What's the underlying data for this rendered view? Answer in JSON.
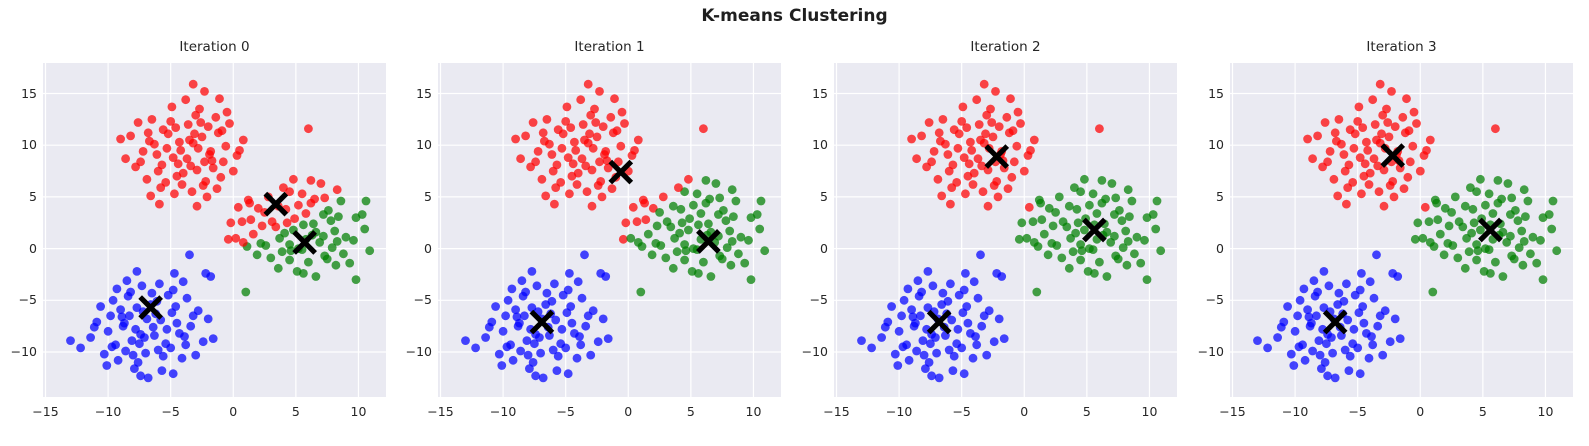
{
  "figure": {
    "title": "K-means Clustering",
    "background": "#ffffff"
  },
  "chart_data": {
    "type": "scatter",
    "title": "K-means Clustering",
    "grid": true,
    "axes_background": "#eaeaf2",
    "gridline_color": "#ffffff",
    "xlim": [
      -15.2,
      12.2
    ],
    "ylim": [
      -14.35,
      17.95
    ],
    "xticks": [
      -15,
      -10,
      -5,
      0,
      5,
      10
    ],
    "yticks": [
      -10,
      -5,
      0,
      5,
      10,
      15
    ],
    "colors": [
      "red",
      "green",
      "blue"
    ],
    "point_fill": {
      "red": "rgba(255,0,0,0.72)",
      "green": "rgba(0,128,0,0.72)",
      "blue": "rgba(0,0,255,0.72)"
    },
    "centroid_marker": {
      "shape": "X",
      "color": "#000000"
    },
    "assignment_rule": "nearest-centroid",
    "subplots": [
      {
        "title": "Iteration 0",
        "centroids": [
          [
            3.4,
            4.3
          ],
          [
            5.7,
            0.6
          ],
          [
            -6.6,
            -5.7
          ]
        ]
      },
      {
        "title": "Iteration 1",
        "centroids": [
          [
            -0.6,
            7.4
          ],
          [
            6.4,
            0.7
          ],
          [
            -6.9,
            -7.1
          ]
        ]
      },
      {
        "title": "Iteration 2",
        "centroids": [
          [
            -2.2,
            8.9
          ],
          [
            5.6,
            1.8
          ],
          [
            -6.8,
            -7.1
          ]
        ]
      },
      {
        "title": "Iteration 3",
        "centroids": [
          [
            -2.2,
            9.0
          ],
          [
            5.6,
            1.8
          ],
          [
            -6.8,
            -7.1
          ]
        ]
      }
    ],
    "points": [
      [
        -3.5,
        10.5
      ],
      [
        -5.3,
        9.7
      ],
      [
        -1.7,
        8.5
      ],
      [
        -4.5,
        7.0
      ],
      [
        -2.0,
        11.8
      ],
      [
        -6.7,
        10.4
      ],
      [
        -2.9,
        7.6
      ],
      [
        -0.6,
        9.9
      ],
      [
        -5.0,
        12.3
      ],
      [
        -7.4,
        8.4
      ],
      [
        -2.4,
        6.1
      ],
      [
        -1.2,
        11.2
      ],
      [
        -4.2,
        9.5
      ],
      [
        -3.7,
        8.7
      ],
      [
        -6.0,
        7.5
      ],
      [
        0.3,
        9.0
      ],
      [
        -8.2,
        10.9
      ],
      [
        -2.7,
        13.5
      ],
      [
        -4.7,
        5.3
      ],
      [
        -1.0,
        6.9
      ],
      [
        -5.6,
        11.5
      ],
      [
        -3.2,
        10.2
      ],
      [
        -6.9,
        6.7
      ],
      [
        -0.3,
        12.1
      ],
      [
        -1.9,
        9.1
      ],
      [
        -6.3,
        10.1
      ],
      [
        -3.6,
        12.0
      ],
      [
        -4.4,
        8.2
      ],
      [
        -2.5,
        10.8
      ],
      [
        -4.8,
        8.8
      ],
      [
        -1.6,
        7.8
      ],
      [
        -5.8,
        5.9
      ],
      [
        -3.0,
        12.9
      ],
      [
        0.8,
        10.5
      ],
      [
        -7.8,
        7.9
      ],
      [
        -2.2,
        6.5
      ],
      [
        -5.2,
        11.1
      ],
      [
        -0.8,
        8.4
      ],
      [
        -4.0,
        7.3
      ],
      [
        -3.3,
        5.5
      ],
      [
        -6.5,
        12.5
      ],
      [
        -1.4,
        12.7
      ],
      [
        -7.2,
        9.4
      ],
      [
        -2.8,
        9.7
      ],
      [
        -4.6,
        11.7
      ],
      [
        -2.1,
        5.0
      ],
      [
        -5.4,
        6.4
      ],
      [
        -0.9,
        11.4
      ],
      [
        -6.1,
        9.1
      ],
      [
        -3.4,
        8.0
      ],
      [
        0.0,
        7.5
      ],
      [
        -7.6,
        12.2
      ],
      [
        -3.1,
        11.1
      ],
      [
        -4.9,
        13.7
      ],
      [
        -1.8,
        9.4
      ],
      [
        -4.1,
        6.2
      ],
      [
        -2.6,
        12.2
      ],
      [
        -6.6,
        5.1
      ],
      [
        -0.5,
        13.2
      ],
      [
        -8.6,
        8.7
      ],
      [
        -3.8,
        14.4
      ],
      [
        -5.7,
        8.1
      ],
      [
        -1.3,
        5.8
      ],
      [
        -4.3,
        10.3
      ],
      [
        -2.3,
        8.4
      ],
      [
        -6.8,
        11.2
      ],
      [
        0.5,
        9.5
      ],
      [
        -5.9,
        4.3
      ],
      [
        -2.9,
        4.1
      ],
      [
        -9.0,
        10.6
      ],
      [
        -3.2,
        15.9
      ],
      [
        -2.3,
        15.2
      ],
      [
        -1.1,
        14.5
      ],
      [
        6.0,
        11.6
      ],
      [
        0.7,
        2.6
      ],
      [
        -0.4,
        0.9
      ],
      [
        -0.2,
        2.5
      ],
      [
        1.3,
        4.4
      ],
      [
        6.6,
        1.6
      ],
      [
        5.8,
        3.4
      ],
      [
        4.6,
        -0.2
      ],
      [
        3.1,
        2.6
      ],
      [
        7.9,
        0.1
      ],
      [
        6.5,
        4.8
      ],
      [
        3.7,
        1.0
      ],
      [
        6.0,
        -1.3
      ],
      [
        8.4,
        3.1
      ],
      [
        4.5,
        5.5
      ],
      [
        2.2,
        0.5
      ],
      [
        7.3,
        -0.7
      ],
      [
        5.6,
        2.3
      ],
      [
        4.8,
        1.8
      ],
      [
        3.6,
        4.1
      ],
      [
        5.1,
        -2.2
      ],
      [
        7.0,
        6.3
      ],
      [
        9.6,
        0.8
      ],
      [
        1.4,
        2.8
      ],
      [
        3.0,
        -0.9
      ],
      [
        7.6,
        3.7
      ],
      [
        6.3,
        1.3
      ],
      [
        2.8,
        5.0
      ],
      [
        8.2,
        -1.6
      ],
      [
        5.2,
        0.0
      ],
      [
        6.2,
        4.4
      ],
      [
        8.1,
        1.7
      ],
      [
        4.3,
        2.5
      ],
      [
        6.9,
        0.6
      ],
      [
        4.9,
        2.9
      ],
      [
        3.9,
        -0.3
      ],
      [
        2.0,
        3.9
      ],
      [
        9.0,
        1.1
      ],
      [
        6.6,
        -2.7
      ],
      [
        4.0,
        5.9
      ],
      [
        2.6,
        0.3
      ],
      [
        7.2,
        3.3
      ],
      [
        4.5,
        -1.1
      ],
      [
        3.4,
        2.1
      ],
      [
        1.6,
        1.4
      ],
      [
        8.6,
        4.6
      ],
      [
        8.8,
        -0.5
      ],
      [
        5.5,
        5.3
      ],
      [
        5.8,
        0.9
      ],
      [
        7.8,
        2.7
      ],
      [
        1.1,
        0.2
      ],
      [
        2.5,
        3.5
      ],
      [
        7.5,
        -1.0
      ],
      [
        5.2,
        4.2
      ],
      [
        4.1,
        1.5
      ],
      [
        3.6,
        -1.9
      ],
      [
        8.3,
        5.7
      ],
      [
        7.2,
        1.2
      ],
      [
        9.8,
        3.0
      ],
      [
        5.5,
        -0.1
      ],
      [
        2.3,
        2.2
      ],
      [
        8.3,
        0.7
      ],
      [
        1.2,
        4.7
      ],
      [
        9.3,
        -1.4
      ],
      [
        4.8,
        6.7
      ],
      [
        10.5,
        1.9
      ],
      [
        4.2,
        3.8
      ],
      [
        1.9,
        -0.6
      ],
      [
        6.4,
        2.4
      ],
      [
        4.5,
        0.4
      ],
      [
        7.3,
        4.9
      ],
      [
        5.6,
        -2.4
      ],
      [
        0.4,
        4.0
      ],
      [
        0.2,
        1.0
      ],
      [
        6.2,
        6.6
      ],
      [
        1.0,
        -4.2
      ],
      [
        10.6,
        4.6
      ],
      [
        10.3,
        3.3
      ],
      [
        10.9,
        -0.2
      ],
      [
        9.8,
        -3.0
      ],
      [
        0.8,
        0.6
      ],
      [
        -7.1,
        -8.6
      ],
      [
        -5.3,
        -7.8
      ],
      [
        -8.9,
        -6.6
      ],
      [
        -6.1,
        -5.1
      ],
      [
        -8.6,
        -9.9
      ],
      [
        -3.9,
        -8.5
      ],
      [
        -7.7,
        -5.7
      ],
      [
        -10.0,
        -8.0
      ],
      [
        -5.6,
        -10.4
      ],
      [
        -3.2,
        -6.5
      ],
      [
        -8.2,
        -4.2
      ],
      [
        -9.4,
        -9.3
      ],
      [
        -6.4,
        -7.6
      ],
      [
        -6.9,
        -6.8
      ],
      [
        -4.6,
        -5.6
      ],
      [
        -10.9,
        -7.1
      ],
      [
        -2.4,
        -9.0
      ],
      [
        -7.9,
        -11.6
      ],
      [
        -5.9,
        -3.4
      ],
      [
        -9.6,
        -5.0
      ],
      [
        -5.0,
        -9.6
      ],
      [
        -7.4,
        -8.3
      ],
      [
        -3.7,
        -4.8
      ],
      [
        -10.3,
        -10.2
      ],
      [
        -8.7,
        -7.2
      ],
      [
        -4.3,
        -8.2
      ],
      [
        -7.0,
        -10.1
      ],
      [
        -6.2,
        -6.3
      ],
      [
        -8.1,
        -8.9
      ],
      [
        -5.8,
        -6.9
      ],
      [
        -9.0,
        -5.9
      ],
      [
        -4.8,
        -4.0
      ],
      [
        -7.6,
        -11.0
      ],
      [
        -11.4,
        -8.6
      ],
      [
        -2.8,
        -6.0
      ],
      [
        -8.4,
        -4.6
      ],
      [
        -5.4,
        -9.2
      ],
      [
        -9.8,
        -6.5
      ],
      [
        -6.6,
        -5.4
      ],
      [
        -7.3,
        -3.6
      ],
      [
        -4.1,
        -10.6
      ],
      [
        -9.2,
        -10.8
      ],
      [
        -3.4,
        -7.5
      ],
      [
        -7.8,
        -7.8
      ],
      [
        -6.0,
        -9.8
      ],
      [
        -8.5,
        -3.1
      ],
      [
        -5.2,
        -4.5
      ],
      [
        -9.7,
        -9.5
      ],
      [
        -4.5,
        -7.2
      ],
      [
        -7.2,
        -6.1
      ],
      [
        -10.6,
        -5.6
      ],
      [
        -3.0,
        -10.3
      ],
      [
        -7.5,
        -9.2
      ],
      [
        -5.7,
        -11.8
      ],
      [
        -8.8,
        -7.5
      ],
      [
        -6.5,
        -4.3
      ],
      [
        -8.0,
        -10.3
      ],
      [
        -4.0,
        -3.2
      ],
      [
        -10.1,
        -11.3
      ],
      [
        -2.0,
        -6.8
      ],
      [
        -6.8,
        -12.5
      ],
      [
        -4.9,
        -6.2
      ],
      [
        -9.3,
        -3.9
      ],
      [
        -6.3,
        -8.4
      ],
      [
        -8.3,
        -6.5
      ],
      [
        -3.8,
        -9.3
      ],
      [
        -11.1,
        -7.6
      ],
      [
        -4.7,
        -2.4
      ],
      [
        -7.7,
        -2.2
      ],
      [
        -1.6,
        -8.7
      ],
      [
        -3.5,
        -0.6
      ],
      [
        -13.0,
        -8.9
      ],
      [
        -12.2,
        -9.6
      ],
      [
        -7.4,
        -12.3
      ],
      [
        -4.8,
        -12.1
      ],
      [
        -2.2,
        -2.4
      ],
      [
        -1.8,
        -2.7
      ]
    ]
  }
}
